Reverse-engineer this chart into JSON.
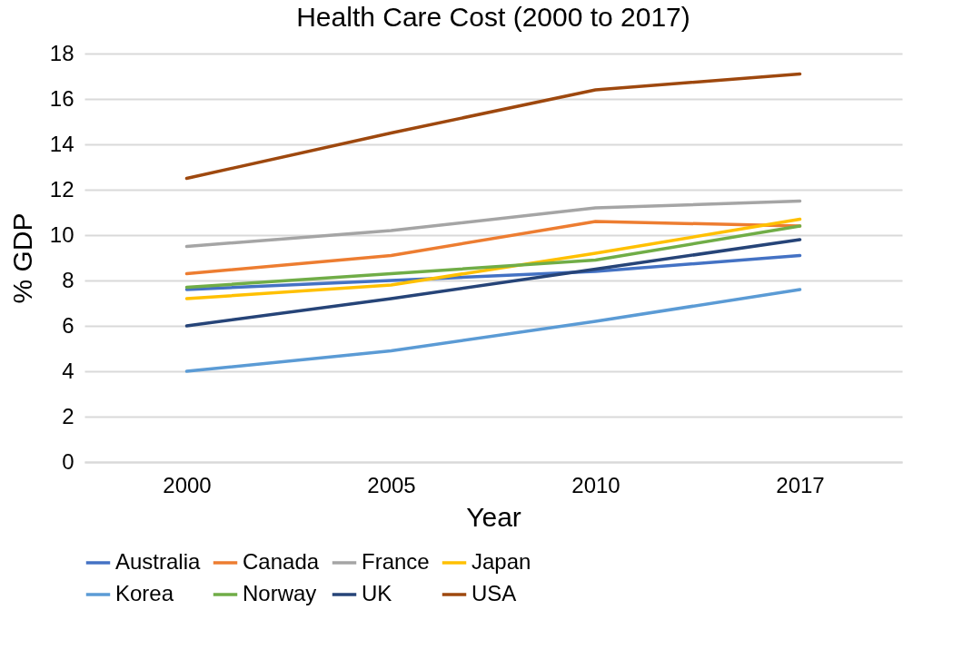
{
  "chart_data": {
    "type": "line",
    "title": "Health Care Cost (2000 to 2017)",
    "xlabel": "Year",
    "ylabel": "% GDP",
    "categories": [
      "2000",
      "2005",
      "2010",
      "2017"
    ],
    "series": [
      {
        "name": "Australia",
        "color": "#4472c4",
        "values": [
          7.6,
          8.0,
          8.4,
          9.1
        ]
      },
      {
        "name": "Canada",
        "color": "#ed7d31",
        "values": [
          8.3,
          9.1,
          10.6,
          10.4
        ]
      },
      {
        "name": "France",
        "color": "#a5a5a5",
        "values": [
          9.5,
          10.2,
          11.2,
          11.5
        ]
      },
      {
        "name": "Japan",
        "color": "#ffc000",
        "values": [
          7.2,
          7.8,
          9.2,
          10.7
        ]
      },
      {
        "name": "Korea",
        "color": "#5b9bd5",
        "values": [
          4.0,
          4.9,
          6.2,
          7.6
        ]
      },
      {
        "name": "Norway",
        "color": "#70ad47",
        "values": [
          7.7,
          8.3,
          8.9,
          10.4
        ]
      },
      {
        "name": "UK",
        "color": "#264478",
        "values": [
          6.0,
          7.2,
          8.5,
          9.8
        ]
      },
      {
        "name": "USA",
        "color": "#9e480e",
        "values": [
          12.5,
          14.5,
          16.4,
          17.1
        ]
      }
    ],
    "ylim": [
      0,
      18
    ],
    "yticks": [
      0,
      2,
      4,
      6,
      8,
      10,
      12,
      14,
      16,
      18
    ],
    "grid": "y",
    "legend": "bottom"
  }
}
